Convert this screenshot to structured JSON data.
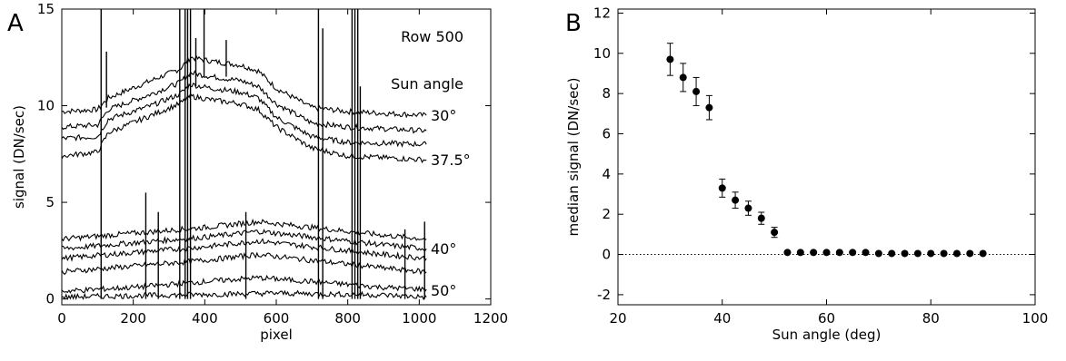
{
  "chart_data": [
    {
      "panel": "A",
      "type": "line",
      "xlabel": "pixel",
      "ylabel": "signal (DN/sec)",
      "xlim": [
        0,
        1200
      ],
      "ylim": [
        -0.3,
        15
      ],
      "xticks": [
        0,
        200,
        400,
        600,
        800,
        1000,
        1200
      ],
      "yticks": [
        0,
        5,
        10,
        15
      ],
      "annotations": {
        "row": "Row 500",
        "sun_header": "Sun angle"
      },
      "curve_labels": [
        "30°",
        "37.5°",
        "40°",
        "50°"
      ],
      "series": [
        {
          "values": [
            [
              0,
              9.7
            ],
            [
              100,
              9.8
            ],
            [
              130,
              10.4
            ],
            [
              250,
              11.3
            ],
            [
              330,
              11.9
            ],
            [
              360,
              12.5
            ],
            [
              420,
              12.3
            ],
            [
              500,
              12.1
            ],
            [
              550,
              11.8
            ],
            [
              600,
              10.9
            ],
            [
              700,
              9.9
            ],
            [
              800,
              9.7
            ],
            [
              1020,
              9.5
            ]
          ]
        },
        {
          "values": [
            [
              0,
              8.9
            ],
            [
              100,
              9.0
            ],
            [
              130,
              9.8
            ],
            [
              250,
              10.6
            ],
            [
              330,
              11.2
            ],
            [
              360,
              11.7
            ],
            [
              420,
              11.5
            ],
            [
              500,
              11.3
            ],
            [
              550,
              11.0
            ],
            [
              600,
              10.1
            ],
            [
              700,
              9.1
            ],
            [
              800,
              8.9
            ],
            [
              1020,
              8.7
            ]
          ]
        },
        {
          "values": [
            [
              0,
              8.3
            ],
            [
              100,
              8.4
            ],
            [
              130,
              9.3
            ],
            [
              250,
              10.0
            ],
            [
              330,
              10.6
            ],
            [
              360,
              11.1
            ],
            [
              420,
              10.9
            ],
            [
              500,
              10.7
            ],
            [
              550,
              10.4
            ],
            [
              600,
              9.4
            ],
            [
              700,
              8.4
            ],
            [
              800,
              8.1
            ],
            [
              1020,
              8.0
            ]
          ]
        },
        {
          "values": [
            [
              0,
              7.4
            ],
            [
              100,
              7.6
            ],
            [
              130,
              8.6
            ],
            [
              250,
              9.5
            ],
            [
              330,
              10.1
            ],
            [
              360,
              10.5
            ],
            [
              420,
              10.3
            ],
            [
              500,
              10.1
            ],
            [
              550,
              9.8
            ],
            [
              600,
              8.9
            ],
            [
              700,
              7.8
            ],
            [
              800,
              7.4
            ],
            [
              1020,
              7.2
            ]
          ]
        },
        {
          "values": [
            [
              0,
              3.1
            ],
            [
              200,
              3.4
            ],
            [
              400,
              3.7
            ],
            [
              550,
              4.0
            ],
            [
              700,
              3.7
            ],
            [
              900,
              3.3
            ],
            [
              1020,
              3.1
            ]
          ]
        },
        {
          "values": [
            [
              0,
              2.6
            ],
            [
              200,
              2.9
            ],
            [
              400,
              3.2
            ],
            [
              550,
              3.5
            ],
            [
              700,
              3.2
            ],
            [
              900,
              2.8
            ],
            [
              1020,
              2.6
            ]
          ]
        },
        {
          "values": [
            [
              0,
              2.1
            ],
            [
              200,
              2.4
            ],
            [
              400,
              2.7
            ],
            [
              550,
              3.0
            ],
            [
              700,
              2.7
            ],
            [
              900,
              2.3
            ],
            [
              1020,
              2.1
            ]
          ]
        },
        {
          "values": [
            [
              0,
              1.4
            ],
            [
              200,
              1.7
            ],
            [
              400,
              2.0
            ],
            [
              550,
              2.3
            ],
            [
              700,
              2.0
            ],
            [
              900,
              1.6
            ],
            [
              1020,
              1.4
            ]
          ]
        },
        {
          "values": [
            [
              0,
              0.4
            ],
            [
              200,
              0.6
            ],
            [
              400,
              0.9
            ],
            [
              550,
              1.1
            ],
            [
              700,
              0.9
            ],
            [
              900,
              0.6
            ],
            [
              1020,
              0.5
            ]
          ]
        },
        {
          "values": [
            [
              0,
              0.1
            ],
            [
              300,
              0.2
            ],
            [
              600,
              0.3
            ],
            [
              900,
              0.2
            ],
            [
              1020,
              0.1
            ]
          ]
        }
      ],
      "spikes": [
        {
          "x": 110,
          "top": 15.0,
          "base": 0
        },
        {
          "x": 125,
          "top": 12.8,
          "base": 9.9
        },
        {
          "x": 330,
          "top": 15.0,
          "base": 0
        },
        {
          "x": 345,
          "top": 15.0,
          "base": 0
        },
        {
          "x": 352,
          "top": 15.0,
          "base": 0
        },
        {
          "x": 360,
          "top": 15.0,
          "base": 0
        },
        {
          "x": 375,
          "top": 13.5,
          "base": 11.0
        },
        {
          "x": 398,
          "top": 15.0,
          "base": 11.5
        },
        {
          "x": 460,
          "top": 13.4,
          "base": 11.5
        },
        {
          "x": 235,
          "top": 5.5,
          "base": 0
        },
        {
          "x": 270,
          "top": 4.5,
          "base": 0
        },
        {
          "x": 515,
          "top": 4.5,
          "base": 0
        },
        {
          "x": 718,
          "top": 15.0,
          "base": 0
        },
        {
          "x": 730,
          "top": 14.0,
          "base": 0
        },
        {
          "x": 812,
          "top": 15.0,
          "base": 0
        },
        {
          "x": 820,
          "top": 15.0,
          "base": 0
        },
        {
          "x": 828,
          "top": 15.0,
          "base": 0
        },
        {
          "x": 835,
          "top": 11.0,
          "base": 0
        },
        {
          "x": 960,
          "top": 3.6,
          "base": 0
        },
        {
          "x": 1015,
          "top": 4.0,
          "base": 0
        }
      ]
    },
    {
      "panel": "B",
      "type": "scatter",
      "xlabel": "Sun angle (deg)",
      "ylabel": "median signal (DN/sec)",
      "xlim": [
        20,
        100
      ],
      "ylim": [
        -2.5,
        12.2
      ],
      "xticks": [
        20,
        40,
        60,
        80,
        100
      ],
      "yticks": [
        -2,
        0,
        2,
        4,
        6,
        8,
        10,
        12
      ],
      "reference_line_y": 0,
      "x": [
        30,
        32.5,
        35,
        37.5,
        40,
        42.5,
        45,
        47.5,
        50,
        52.5,
        55,
        57.5,
        60,
        62.5,
        65,
        67.5,
        70,
        72.5,
        75,
        77.5,
        80,
        82.5,
        85,
        87.5,
        90
      ],
      "y": [
        9.7,
        8.8,
        8.1,
        7.3,
        3.3,
        2.7,
        2.3,
        1.8,
        1.1,
        0.1,
        0.1,
        0.1,
        0.1,
        0.1,
        0.1,
        0.1,
        0.05,
        0.05,
        0.05,
        0.05,
        0.05,
        0.05,
        0.05,
        0.05,
        0.05
      ],
      "yerr": [
        0.8,
        0.7,
        0.7,
        0.6,
        0.45,
        0.4,
        0.35,
        0.3,
        0.25,
        0.1,
        0.1,
        0.1,
        0.1,
        0.1,
        0.1,
        0.1,
        0.05,
        0.05,
        0.05,
        0.05,
        0.05,
        0.05,
        0.05,
        0.05,
        0.05
      ]
    }
  ],
  "panel_labels": {
    "a": "A",
    "b": "B"
  }
}
